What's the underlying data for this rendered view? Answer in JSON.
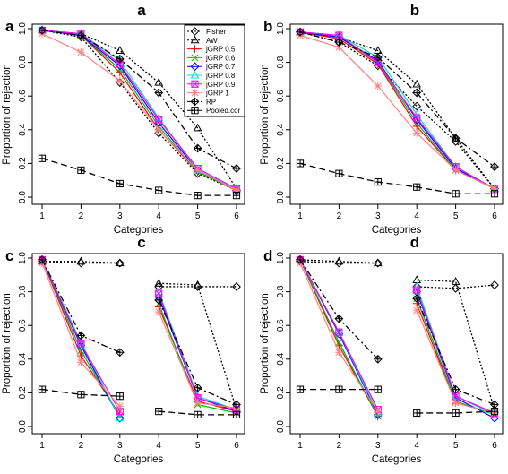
{
  "chart_data": [
    {
      "type": "line",
      "panel_letter": "a",
      "title": "a",
      "xlabel": "Categories",
      "ylabel": "Proportion of rejection",
      "xticks": [
        "1",
        "2",
        "3",
        "4",
        "5",
        "6"
      ],
      "yticks": [
        "0.0",
        "0.2",
        "0.4",
        "0.6",
        "0.8",
        "1.0"
      ],
      "xlim": [
        1,
        6
      ],
      "ylim": [
        0,
        1
      ],
      "legend": {
        "placement": "top-right",
        "entries": [
          "Fisher",
          "AW",
          "jGRP 0.5",
          "jGRP 0.6",
          "jGRP 0.7",
          "jGRP 0.8",
          "jGRP 0.9",
          "jGRP 1",
          "RP",
          "Pooled.cor"
        ]
      },
      "x": [
        1,
        2,
        3,
        4,
        5,
        6
      ],
      "series": [
        {
          "name": "Fisher",
          "color": "#000000",
          "dash": "2,2",
          "marker": "diamond",
          "segments": [
            [
              0.99,
              0.95,
              0.68,
              0.38,
              0.14,
              0.04
            ]
          ]
        },
        {
          "name": "AW",
          "color": "#000000",
          "dash": "2,2",
          "marker": "triangle",
          "segments": [
            [
              0.99,
              0.97,
              0.87,
              0.68,
              0.41,
              0.05
            ]
          ]
        },
        {
          "name": "jGRP 0.5",
          "color": "#ff0000",
          "dash": "",
          "marker": "plus",
          "segments": [
            [
              0.99,
              0.96,
              0.74,
              0.4,
              0.15,
              0.04
            ]
          ]
        },
        {
          "name": "jGRP 0.6",
          "color": "#00bb00",
          "dash": "",
          "marker": "x",
          "segments": [
            [
              0.99,
              0.96,
              0.76,
              0.42,
              0.15,
              0.04
            ]
          ]
        },
        {
          "name": "jGRP 0.7",
          "color": "#0000ff",
          "dash": "",
          "marker": "diamond",
          "segments": [
            [
              0.99,
              0.96,
              0.78,
              0.44,
              0.16,
              0.04
            ]
          ]
        },
        {
          "name": "jGRP 0.8",
          "color": "#00dddd",
          "dash": "",
          "marker": "triangle",
          "segments": [
            [
              0.99,
              0.97,
              0.81,
              0.47,
              0.16,
              0.05
            ]
          ]
        },
        {
          "name": "jGRP 0.9",
          "color": "#ff00ff",
          "dash": "",
          "marker": "square-x",
          "segments": [
            [
              0.99,
              0.97,
              0.79,
              0.46,
              0.17,
              0.05
            ]
          ]
        },
        {
          "name": "jGRP 1",
          "color": "#ff8080",
          "dash": "",
          "marker": "star",
          "segments": [
            [
              0.97,
              0.86,
              0.69,
              0.4,
              0.16,
              0.04
            ]
          ]
        },
        {
          "name": "RP",
          "color": "#000000",
          "dash": "7,3,2,3",
          "marker": "diamond-plus",
          "segments": [
            [
              0.99,
              0.96,
              0.82,
              0.62,
              0.29,
              0.17
            ]
          ]
        },
        {
          "name": "Pooled.cor",
          "color": "#000000",
          "dash": "7,4",
          "marker": "square-plus",
          "segments": [
            [
              0.23,
              0.16,
              0.08,
              0.04,
              0.01,
              0.01
            ]
          ]
        }
      ]
    },
    {
      "type": "line",
      "panel_letter": "b",
      "title": "b",
      "xlabel": "Categories",
      "ylabel": "Proportion of rejection",
      "xticks": [
        "1",
        "2",
        "3",
        "4",
        "5",
        "6"
      ],
      "yticks": [
        "0.0",
        "0.2",
        "0.4",
        "0.6",
        "0.8",
        "1.0"
      ],
      "xlim": [
        1,
        6
      ],
      "ylim": [
        0,
        1
      ],
      "x": [
        1,
        2,
        3,
        4,
        5,
        6
      ],
      "series": [
        {
          "name": "Fisher",
          "color": "#000000",
          "dash": "2,2",
          "marker": "diamond",
          "segments": [
            [
              0.98,
              0.92,
              0.78,
              0.54,
              0.33,
              0.05
            ]
          ]
        },
        {
          "name": "AW",
          "color": "#000000",
          "dash": "2,2",
          "marker": "triangle",
          "segments": [
            [
              0.98,
              0.95,
              0.87,
              0.67,
              0.35,
              0.05
            ]
          ]
        },
        {
          "name": "jGRP 0.5",
          "color": "#ff0000",
          "dash": "",
          "marker": "plus",
          "segments": [
            [
              0.98,
              0.94,
              0.79,
              0.42,
              0.16,
              0.05
            ]
          ]
        },
        {
          "name": "jGRP 0.6",
          "color": "#00bb00",
          "dash": "",
          "marker": "x",
          "segments": [
            [
              0.98,
              0.95,
              0.8,
              0.44,
              0.16,
              0.05
            ]
          ]
        },
        {
          "name": "jGRP 0.7",
          "color": "#0000ff",
          "dash": "",
          "marker": "diamond",
          "segments": [
            [
              0.98,
              0.95,
              0.81,
              0.46,
              0.17,
              0.05
            ]
          ]
        },
        {
          "name": "jGRP 0.8",
          "color": "#00dddd",
          "dash": "",
          "marker": "triangle",
          "segments": [
            [
              0.98,
              0.96,
              0.83,
              0.49,
              0.18,
              0.05
            ]
          ]
        },
        {
          "name": "jGRP 0.9",
          "color": "#ff00ff",
          "dash": "",
          "marker": "square-x",
          "segments": [
            [
              0.98,
              0.96,
              0.8,
              0.47,
              0.18,
              0.05
            ]
          ]
        },
        {
          "name": "jGRP 1",
          "color": "#ff8080",
          "dash": "",
          "marker": "star",
          "segments": [
            [
              0.96,
              0.89,
              0.66,
              0.38,
              0.16,
              0.05
            ]
          ]
        },
        {
          "name": "RP",
          "color": "#000000",
          "dash": "7,3,2,3",
          "marker": "diamond-plus",
          "segments": [
            [
              0.98,
              0.92,
              0.83,
              0.62,
              0.35,
              0.18
            ]
          ]
        },
        {
          "name": "Pooled.cor",
          "color": "#000000",
          "dash": "7,4",
          "marker": "square-plus",
          "segments": [
            [
              0.2,
              0.14,
              0.09,
              0.06,
              0.02,
              0.02
            ]
          ]
        }
      ]
    },
    {
      "type": "line",
      "panel_letter": "c",
      "title": "c",
      "xlabel": "Categories",
      "ylabel": "Proportion of rejection",
      "xticks": [
        "1",
        "2",
        "3",
        "4",
        "5",
        "6"
      ],
      "yticks": [
        "0.0",
        "0.2",
        "0.4",
        "0.6",
        "0.8",
        "1.0"
      ],
      "xlim": [
        1,
        6
      ],
      "ylim": [
        0,
        1
      ],
      "x": [
        1,
        2,
        3,
        4,
        5,
        6
      ],
      "series": [
        {
          "name": "Fisher",
          "color": "#000000",
          "dash": "2,2",
          "marker": "diamond",
          "segments": [
            [
              0.98,
              0.97,
              0.97
            ],
            [
              0.83,
              0.83,
              0.83
            ]
          ]
        },
        {
          "name": "AW",
          "color": "#000000",
          "dash": "2,2",
          "marker": "triangle",
          "segments": [
            [
              0.98,
              0.98,
              0.97
            ],
            [
              0.85,
              0.84,
              0.1
            ]
          ]
        },
        {
          "name": "jGRP 0.5",
          "color": "#ff0000",
          "dash": "",
          "marker": "plus",
          "segments": [
            [
              0.99,
              0.42,
              0.07
            ],
            [
              0.71,
              0.15,
              0.09
            ]
          ]
        },
        {
          "name": "jGRP 0.6",
          "color": "#00bb00",
          "dash": "",
          "marker": "x",
          "segments": [
            [
              0.99,
              0.45,
              0.06
            ],
            [
              0.73,
              0.13,
              0.08
            ]
          ]
        },
        {
          "name": "jGRP 0.7",
          "color": "#0000ff",
          "dash": "",
          "marker": "diamond",
          "segments": [
            [
              0.99,
              0.48,
              0.05
            ],
            [
              0.77,
              0.17,
              0.09
            ]
          ]
        },
        {
          "name": "jGRP 0.8",
          "color": "#00dddd",
          "dash": "",
          "marker": "triangle",
          "segments": [
            [
              0.99,
              0.5,
              0.05
            ],
            [
              0.8,
              0.18,
              0.1
            ]
          ]
        },
        {
          "name": "jGRP 0.9",
          "color": "#ff00ff",
          "dash": "",
          "marker": "square-x",
          "segments": [
            [
              0.99,
              0.49,
              0.09
            ],
            [
              0.79,
              0.17,
              0.1
            ]
          ]
        },
        {
          "name": "jGRP 1",
          "color": "#ff8080",
          "dash": "",
          "marker": "star",
          "segments": [
            [
              0.97,
              0.38,
              0.12
            ],
            [
              0.68,
              0.14,
              0.11
            ]
          ]
        },
        {
          "name": "RP",
          "color": "#000000",
          "dash": "7,3,2,3",
          "marker": "diamond-plus",
          "segments": [
            [
              0.99,
              0.54,
              0.44
            ],
            [
              0.75,
              0.23,
              0.13
            ]
          ]
        },
        {
          "name": "Pooled.cor",
          "color": "#000000",
          "dash": "7,4",
          "marker": "square-plus",
          "segments": [
            [
              0.22,
              0.19,
              0.18
            ],
            [
              0.09,
              0.07,
              0.07
            ]
          ]
        }
      ]
    },
    {
      "type": "line",
      "panel_letter": "d",
      "title": "d",
      "xlabel": "Categories",
      "ylabel": "Proportion of rejection",
      "xticks": [
        "1",
        "2",
        "3",
        "4",
        "5",
        "6"
      ],
      "yticks": [
        "0.0",
        "0.2",
        "0.4",
        "0.6",
        "0.8",
        "1.0"
      ],
      "xlim": [
        1,
        6
      ],
      "ylim": [
        0,
        1
      ],
      "x": [
        1,
        2,
        3,
        4,
        5,
        6
      ],
      "series": [
        {
          "name": "Fisher",
          "color": "#000000",
          "dash": "2,2",
          "marker": "diamond",
          "segments": [
            [
              0.98,
              0.97,
              0.97
            ],
            [
              0.83,
              0.82,
              0.84
            ]
          ]
        },
        {
          "name": "AW",
          "color": "#000000",
          "dash": "2,2",
          "marker": "triangle",
          "segments": [
            [
              0.99,
              0.98,
              0.97
            ],
            [
              0.87,
              0.86,
              0.1
            ]
          ]
        },
        {
          "name": "jGRP 0.5",
          "color": "#ff0000",
          "dash": "",
          "marker": "plus",
          "segments": [
            [
              0.99,
              0.48,
              0.06
            ],
            [
              0.73,
              0.14,
              0.08
            ]
          ]
        },
        {
          "name": "jGRP 0.6",
          "color": "#00bb00",
          "dash": "",
          "marker": "x",
          "segments": [
            [
              0.99,
              0.5,
              0.06
            ],
            [
              0.76,
              0.15,
              0.07
            ]
          ]
        },
        {
          "name": "jGRP 0.7",
          "color": "#0000ff",
          "dash": "",
          "marker": "diamond",
          "segments": [
            [
              0.99,
              0.55,
              0.07
            ],
            [
              0.8,
              0.17,
              0.05
            ]
          ]
        },
        {
          "name": "jGRP 0.8",
          "color": "#00dddd",
          "dash": "",
          "marker": "triangle",
          "segments": [
            [
              0.99,
              0.56,
              0.08
            ],
            [
              0.83,
              0.18,
              0.07
            ]
          ]
        },
        {
          "name": "jGRP 0.9",
          "color": "#ff00ff",
          "dash": "",
          "marker": "square-x",
          "segments": [
            [
              0.99,
              0.56,
              0.1
            ],
            [
              0.81,
              0.18,
              0.08
            ]
          ]
        },
        {
          "name": "jGRP 1",
          "color": "#ff8080",
          "dash": "",
          "marker": "star",
          "segments": [
            [
              0.97,
              0.44,
              0.09
            ],
            [
              0.69,
              0.14,
              0.08
            ]
          ]
        },
        {
          "name": "RP",
          "color": "#000000",
          "dash": "7,3,2,3",
          "marker": "diamond-plus",
          "segments": [
            [
              0.99,
              0.64,
              0.4
            ],
            [
              0.76,
              0.22,
              0.13
            ]
          ]
        },
        {
          "name": "Pooled.cor",
          "color": "#000000",
          "dash": "7,4",
          "marker": "square-plus",
          "segments": [
            [
              0.22,
              0.22,
              0.22
            ],
            [
              0.08,
              0.08,
              0.09
            ]
          ]
        }
      ]
    }
  ]
}
